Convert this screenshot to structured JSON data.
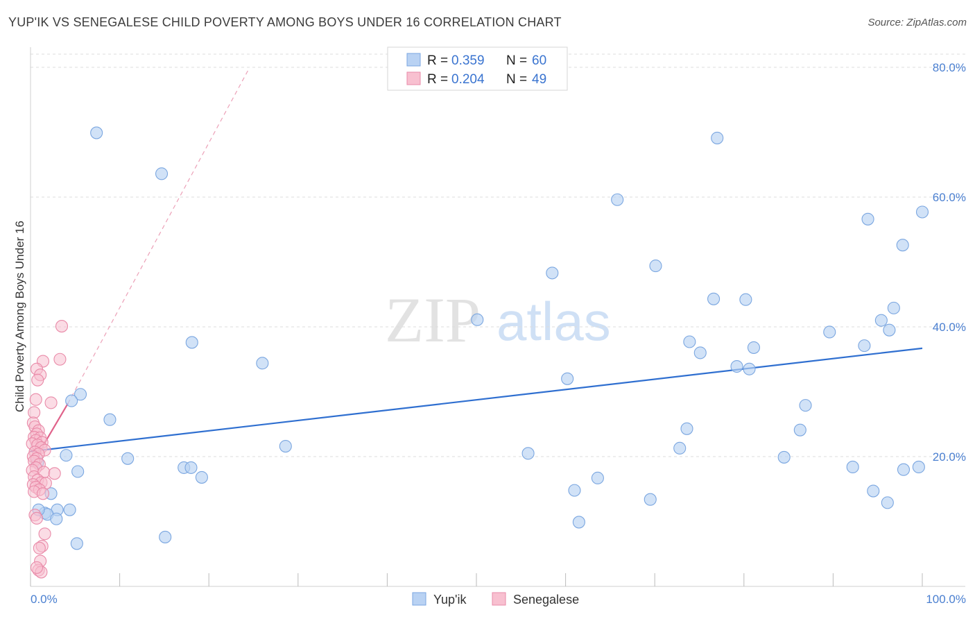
{
  "title": "YUP'IK VS SENEGALESE CHILD POVERTY AMONG BOYS UNDER 16 CORRELATION CHART",
  "source": "Source: ZipAtlas.com",
  "watermark": {
    "part1": "ZIP",
    "part2": "atlas"
  },
  "colors": {
    "yupik_fill": "#b9d2f3",
    "yupik_stroke": "#7aa6e0",
    "yupik_line": "#2f6fd0",
    "senegalese_fill": "#f8c0d0",
    "senegalese_stroke": "#e98aa8",
    "senegalese_line": "#e0628a",
    "grid": "#dcdcdc",
    "axis_label": "#4a7fd0"
  },
  "legend": {
    "rows": [
      {
        "r_label": "R = ",
        "r_value": "0.359",
        "n_label": "N = ",
        "n_value": "60",
        "series": "yupik"
      },
      {
        "r_label": "R = ",
        "r_value": "0.204",
        "n_label": "N = ",
        "n_value": "49",
        "series": "senegalese"
      }
    ]
  },
  "bottom_legend": [
    "Yup'ik",
    "Senegalese"
  ],
  "chart_data": {
    "type": "scatter",
    "title": "YUP'IK VS SENEGALESE CHILD POVERTY AMONG BOYS UNDER 16 CORRELATION CHART",
    "xlabel": "",
    "ylabel": "Child Poverty Among Boys Under 16",
    "xlim": [
      0,
      100
    ],
    "ylim": [
      0,
      80
    ],
    "x_tick_labels": [
      "0.0%",
      "100.0%"
    ],
    "y_ticks": [
      20,
      40,
      60,
      80
    ],
    "y_tick_labels": [
      "20.0%",
      "40.0%",
      "60.0%",
      "80.0%"
    ],
    "grid": true,
    "legend_placement": "top-center",
    "series": [
      {
        "name": "Yup'ik",
        "R": 0.359,
        "N": 60,
        "trend": {
          "x": [
            0,
            100
          ],
          "y": [
            20.8,
            36.7
          ],
          "style": "solid"
        },
        "points": [
          [
            7.4,
            69.9
          ],
          [
            14.7,
            63.6
          ],
          [
            18.1,
            37.6
          ],
          [
            26,
            34.4
          ],
          [
            28.6,
            21.6
          ],
          [
            5.6,
            29.6
          ],
          [
            4.6,
            28.6
          ],
          [
            8.9,
            25.7
          ],
          [
            10.9,
            19.7
          ],
          [
            4,
            20.2
          ],
          [
            5.3,
            17.7
          ],
          [
            17.2,
            18.3
          ],
          [
            18,
            18.3
          ],
          [
            19.2,
            16.8
          ],
          [
            2.3,
            14.3
          ],
          [
            3,
            11.8
          ],
          [
            4.4,
            11.8
          ],
          [
            1.6,
            11.3
          ],
          [
            1.9,
            11.1
          ],
          [
            2.9,
            10.4
          ],
          [
            5.2,
            6.6
          ],
          [
            15.1,
            7.6
          ],
          [
            0.9,
            11.8
          ],
          [
            0.8,
            19.1
          ],
          [
            50.1,
            41.1
          ],
          [
            58.5,
            48.3
          ],
          [
            60.2,
            32.0
          ],
          [
            55.8,
            20.5
          ],
          [
            61,
            14.8
          ],
          [
            61.5,
            9.9
          ],
          [
            63.6,
            16.7
          ],
          [
            65.8,
            59.6
          ],
          [
            69.5,
            13.4
          ],
          [
            70.1,
            49.4
          ],
          [
            72.8,
            21.3
          ],
          [
            73.6,
            24.3
          ],
          [
            73.9,
            37.7
          ],
          [
            75.1,
            36.0
          ],
          [
            76.6,
            44.3
          ],
          [
            77,
            69.1
          ],
          [
            79.2,
            33.9
          ],
          [
            80.2,
            44.2
          ],
          [
            80.6,
            33.5
          ],
          [
            81.1,
            36.8
          ],
          [
            84.5,
            19.9
          ],
          [
            86.3,
            24.1
          ],
          [
            86.9,
            27.9
          ],
          [
            89.6,
            39.2
          ],
          [
            92.2,
            18.4
          ],
          [
            93.5,
            37.1
          ],
          [
            93.9,
            56.6
          ],
          [
            94.5,
            14.7
          ],
          [
            95.4,
            41.0
          ],
          [
            96.1,
            12.9
          ],
          [
            96.3,
            39.5
          ],
          [
            96.8,
            42.9
          ],
          [
            97.8,
            52.6
          ],
          [
            97.9,
            18.0
          ],
          [
            99.6,
            18.4
          ],
          [
            100,
            57.7
          ]
        ]
      },
      {
        "name": "Senegalese",
        "R": 0.204,
        "N": 49,
        "trend": {
          "x": [
            0,
            4.2
          ],
          "y": [
            18.4,
            28.2
          ],
          "style": "solid",
          "extension": {
            "x": [
              4.2,
              24.5
            ],
            "y": [
              28.2,
              79.8
            ],
            "style": "dashed"
          }
        },
        "points": [
          [
            3.5,
            40.1
          ],
          [
            3.3,
            35.0
          ],
          [
            1.4,
            34.7
          ],
          [
            0.7,
            33.5
          ],
          [
            1.1,
            32.6
          ],
          [
            0.8,
            31.8
          ],
          [
            2.3,
            28.3
          ],
          [
            0.6,
            28.8
          ],
          [
            0.4,
            26.8
          ],
          [
            0.3,
            25.2
          ],
          [
            0.5,
            24.6
          ],
          [
            0.9,
            24.0
          ],
          [
            0.7,
            23.5
          ],
          [
            0.4,
            23.0
          ],
          [
            1.1,
            22.9
          ],
          [
            0.6,
            22.5
          ],
          [
            1.3,
            22.2
          ],
          [
            0.2,
            22.0
          ],
          [
            0.8,
            21.8
          ],
          [
            1.2,
            21.4
          ],
          [
            1.6,
            21.0
          ],
          [
            0.5,
            20.7
          ],
          [
            0.9,
            20.4
          ],
          [
            0.3,
            20.0
          ],
          [
            0.7,
            19.7
          ],
          [
            0.4,
            19.3
          ],
          [
            1.0,
            18.8
          ],
          [
            0.6,
            18.3
          ],
          [
            0.2,
            17.9
          ],
          [
            1.5,
            17.6
          ],
          [
            2.7,
            17.4
          ],
          [
            0.4,
            16.9
          ],
          [
            0.8,
            16.4
          ],
          [
            1.2,
            16.0
          ],
          [
            0.3,
            15.7
          ],
          [
            1.7,
            15.9
          ],
          [
            0.6,
            15.3
          ],
          [
            1.0,
            14.9
          ],
          [
            0.4,
            14.6
          ],
          [
            1.4,
            14.3
          ],
          [
            0.5,
            11.0
          ],
          [
            0.7,
            10.5
          ],
          [
            1.6,
            8.1
          ],
          [
            1.3,
            6.2
          ],
          [
            1.0,
            5.9
          ],
          [
            1.1,
            3.9
          ],
          [
            0.9,
            2.5
          ],
          [
            1.2,
            2.2
          ],
          [
            0.7,
            2.9
          ]
        ]
      }
    ]
  }
}
